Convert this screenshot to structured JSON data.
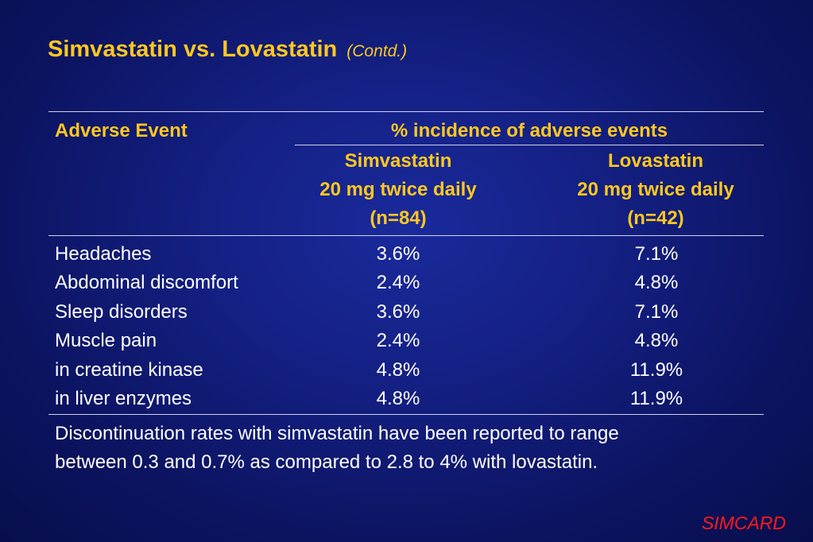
{
  "slide": {
    "title": "Simvastatin vs. Lovastatin",
    "subtitle": "(Contd.)"
  },
  "table": {
    "header_event": "Adverse Event",
    "header_group": "% incidence of adverse events",
    "columns": [
      {
        "drug": "Simvastatin",
        "dose": "20 mg twice daily",
        "n": "(n=84)"
      },
      {
        "drug": "Lovastatin",
        "dose": "20 mg twice daily",
        "n": "(n=42)"
      }
    ],
    "rows": [
      {
        "event": "Headaches",
        "simvastatin": "3.6%",
        "lovastatin": "7.1%"
      },
      {
        "event": "Abdominal discomfort",
        "simvastatin": "2.4%",
        "lovastatin": "4.8%"
      },
      {
        "event": "Sleep disorders",
        "simvastatin": "3.6%",
        "lovastatin": "7.1%"
      },
      {
        "event": "Muscle pain",
        "simvastatin": "2.4%",
        "lovastatin": "4.8%"
      },
      {
        "event": "in creatine kinase",
        "simvastatin": "4.8%",
        "lovastatin": "11.9%"
      },
      {
        "event": "in liver enzymes",
        "simvastatin": "4.8%",
        "lovastatin": "11.9%"
      }
    ]
  },
  "note": {
    "line1": "Discontinuation rates with simvastatin have been reported to range",
    "line2": "between 0.3 and 0.7% as compared to 2.8 to 4% with lovastatin."
  },
  "footer": {
    "brand": "SIMCARD"
  },
  "colors": {
    "background": "#142083",
    "heading": "#ffc81e",
    "body_text": "#ffffff",
    "brand": "#ff1a1a"
  }
}
